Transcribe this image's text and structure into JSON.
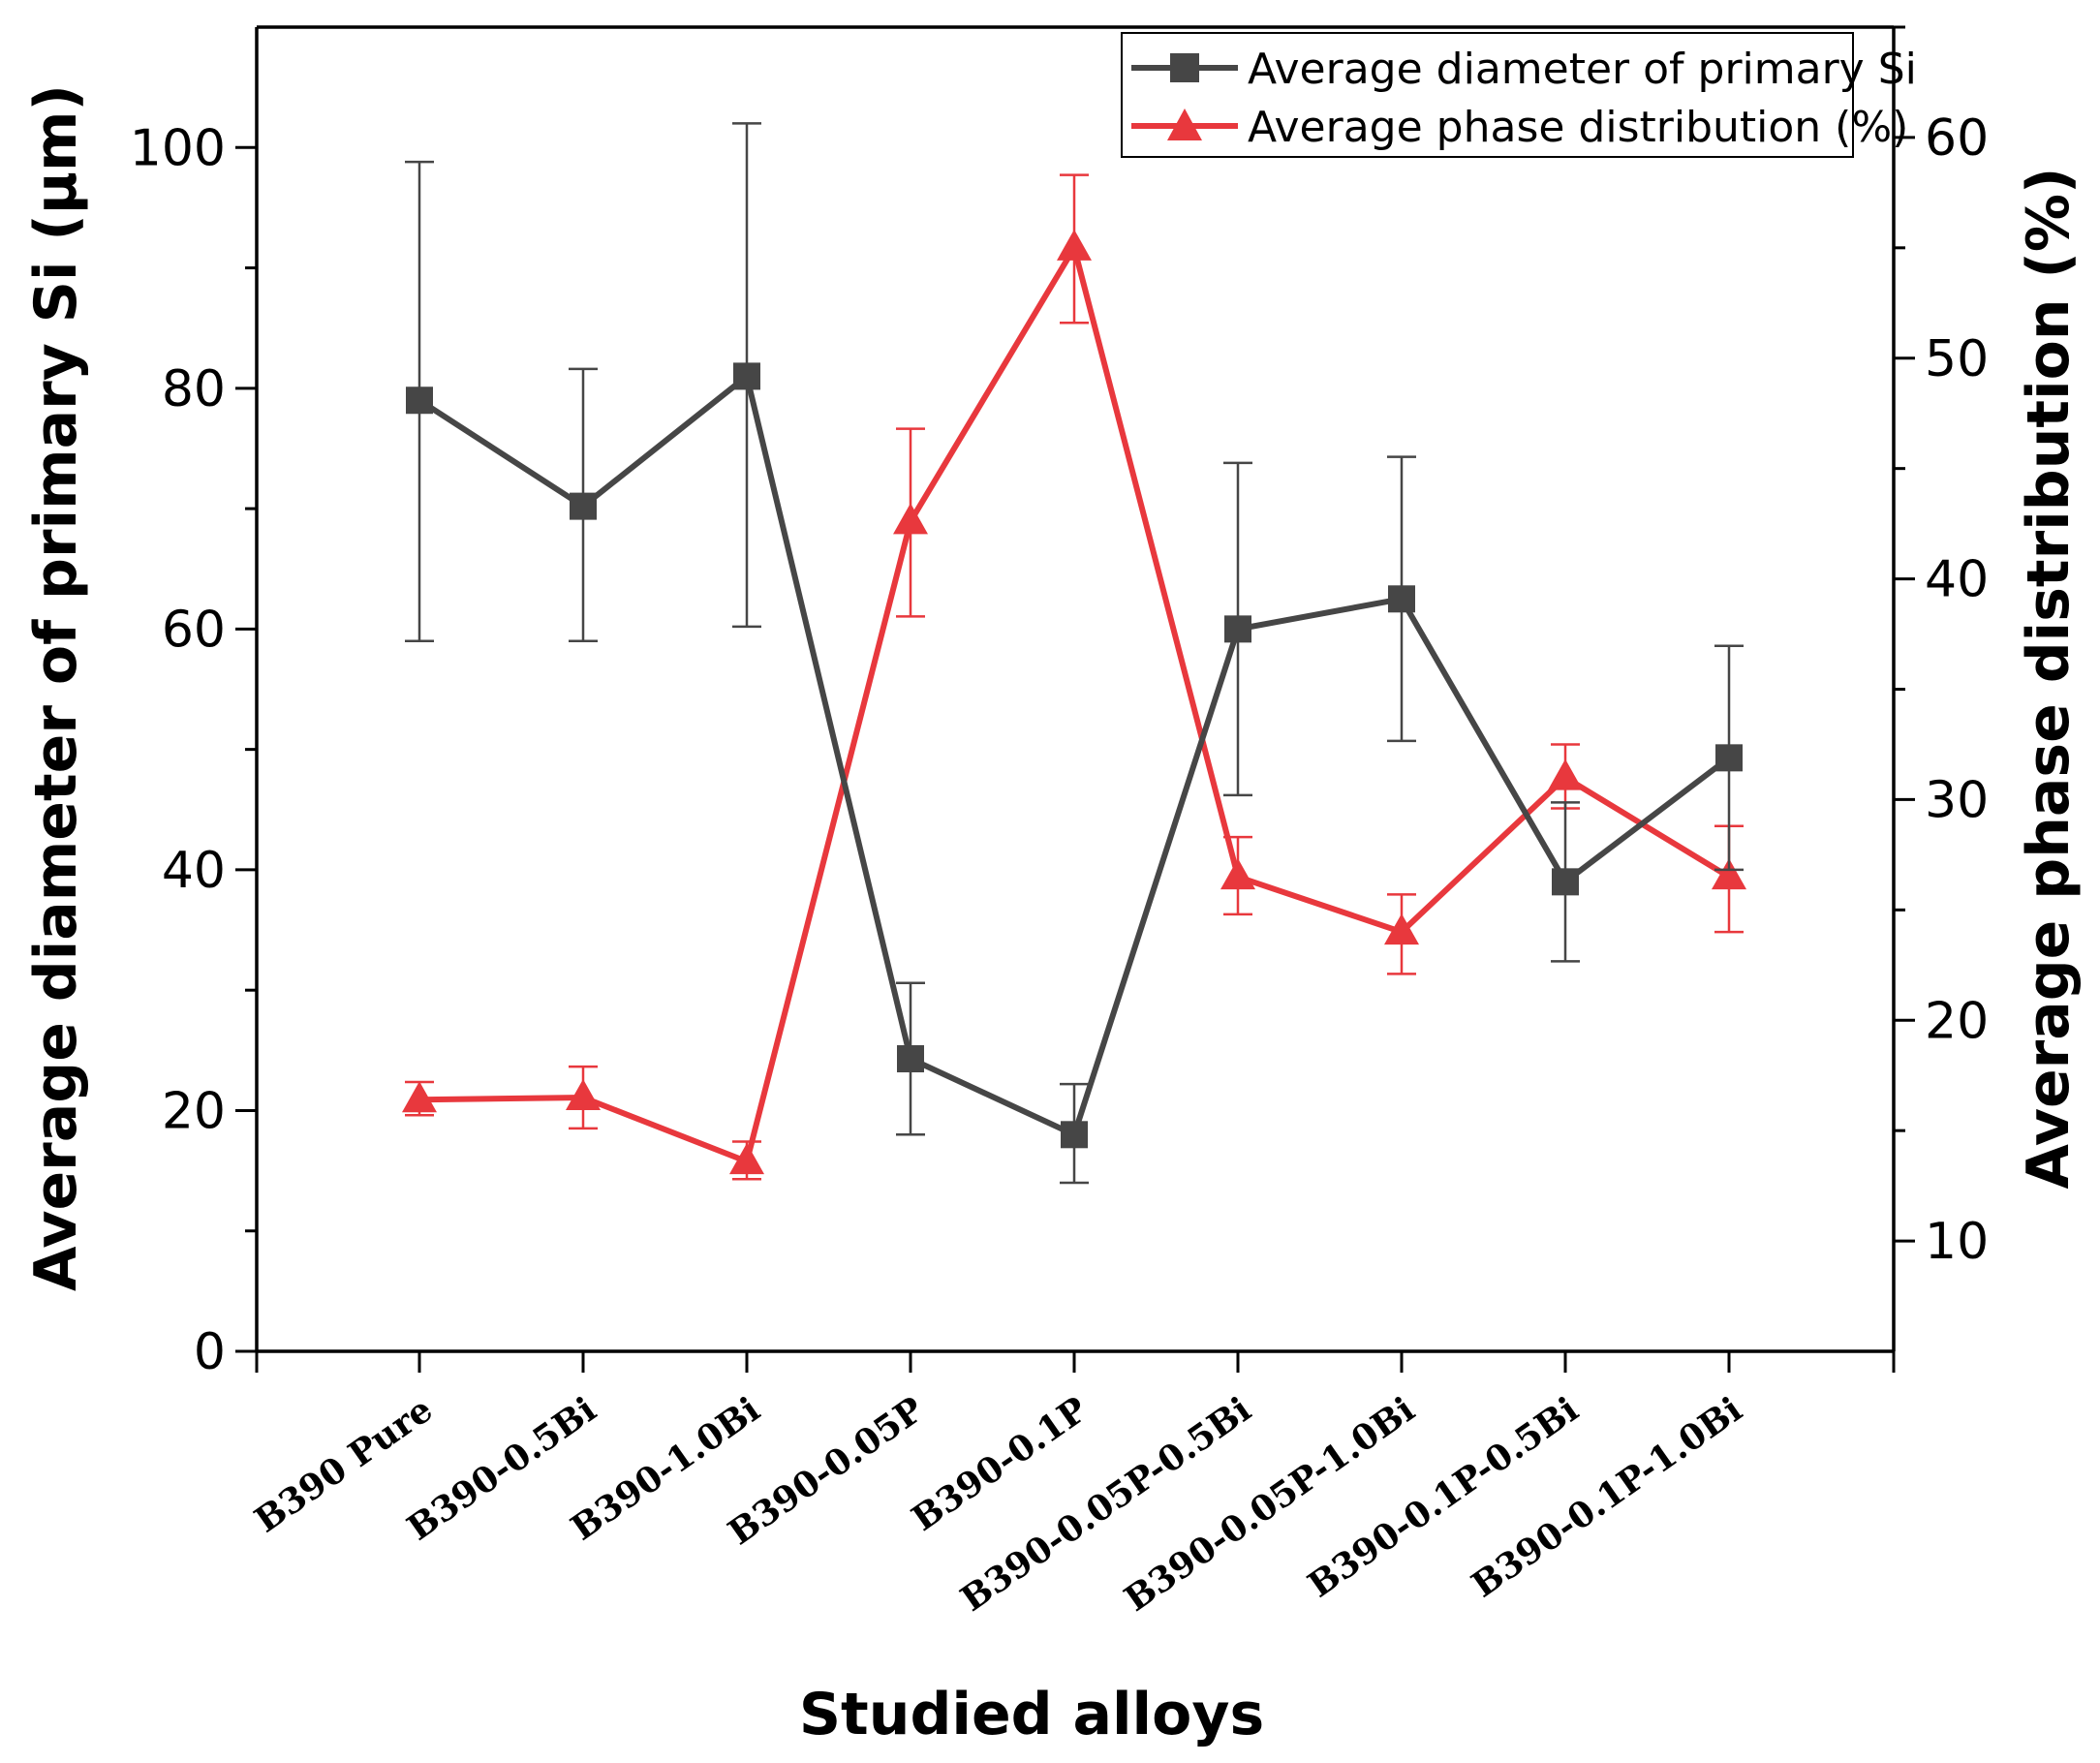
{
  "chart_data": {
    "type": "line",
    "xlabel": "Studied alloys",
    "ylabel_left": "Average diameter of primary Si (µm)",
    "ylabel_right": "Average phase distribution (%)",
    "categories": [
      "B390 Pure",
      "B390-0.5Bi",
      "B390-1.0Bi",
      "B390-0.05P",
      "B390-0.1P",
      "B390-0.05P-0.5Bi",
      "B390-0.05P-1.0Bi",
      "B390-0.1P-0.5Bi",
      "B390-0.1P-1.0Bi"
    ],
    "left_axis": {
      "range": [
        0,
        110
      ],
      "ticks": [
        0,
        20,
        40,
        60,
        80,
        100
      ],
      "tick_labels": [
        "0",
        "20",
        "40",
        "60",
        "80",
        "100"
      ]
    },
    "right_axis": {
      "range": [
        5,
        65
      ],
      "ticks": [
        10,
        20,
        30,
        40,
        50,
        60
      ],
      "tick_labels": [
        "10",
        "20",
        "30",
        "40",
        "50",
        "60"
      ]
    },
    "series": [
      {
        "name": "Average diameter of primary Si",
        "axis": "left",
        "color": "#464646",
        "marker": "square",
        "values": [
          79,
          70.2,
          81,
          24.3,
          18,
          60,
          62.5,
          39,
          49.3
        ],
        "err_low": [
          59,
          59,
          60.2,
          18,
          14,
          46.2,
          50.7,
          32.4,
          40
        ],
        "err_high": [
          98.8,
          81.6,
          102,
          30.6,
          22.2,
          73.8,
          74.3,
          45.6,
          58.6
        ]
      },
      {
        "name": "Average phase distribution (%)",
        "axis": "right",
        "color": "#e8383d",
        "marker": "triangle",
        "values": [
          16.4,
          16.5,
          13.6,
          42.6,
          55,
          26.5,
          24,
          31,
          26.5
        ],
        "err_low": [
          15.7,
          15.1,
          12.8,
          38.3,
          51.6,
          24.8,
          22.1,
          29.6,
          24
        ],
        "err_high": [
          17.2,
          17.9,
          14.5,
          46.8,
          58.3,
          28.3,
          25.7,
          32.5,
          28.8
        ]
      }
    ],
    "legend": "top-right",
    "grid": false
  }
}
